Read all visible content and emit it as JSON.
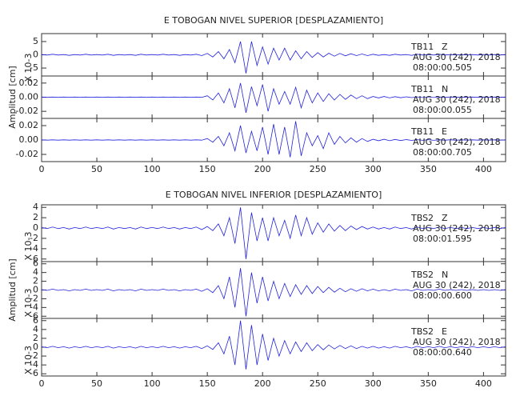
{
  "chart_data": [
    {
      "type": "line",
      "title": "E TOBOGAN NIVEL SUPERIOR [DESPLAZAMIENTO]",
      "ylabel": "Amplitud [cm]",
      "xlim": [
        0,
        420
      ],
      "xticks": [
        0,
        50,
        100,
        150,
        200,
        250,
        300,
        350,
        400
      ],
      "x": [
        0,
        5,
        10,
        15,
        20,
        25,
        30,
        35,
        40,
        45,
        50,
        55,
        60,
        65,
        70,
        75,
        80,
        85,
        90,
        95,
        100,
        105,
        110,
        115,
        120,
        125,
        130,
        135,
        140,
        145,
        150,
        155,
        160,
        165,
        170,
        175,
        180,
        185,
        190,
        195,
        200,
        205,
        210,
        215,
        220,
        225,
        230,
        235,
        240,
        245,
        250,
        255,
        260,
        265,
        270,
        275,
        280,
        285,
        290,
        295,
        300,
        305,
        310,
        315,
        320,
        325,
        330,
        335,
        340,
        345,
        350,
        355,
        360,
        365,
        370,
        375,
        380,
        385,
        390,
        395,
        400,
        405,
        410,
        415,
        420
      ],
      "panels": [
        {
          "station": "TB11",
          "component": "Z",
          "date": "AUG 30 (242), 2018",
          "time": "08:00:00.505",
          "scale_label": "X 10-3",
          "color": "#2222dd",
          "ylim": [
            -8,
            8
          ],
          "yticks": [
            -5,
            0,
            5
          ],
          "values": [
            0.1,
            -0.1,
            0.2,
            -0.1,
            0.1,
            -0.2,
            0.1,
            -0.1,
            0.2,
            -0.1,
            0.1,
            -0.1,
            0.2,
            -0.2,
            0.1,
            -0.1,
            0.1,
            -0.2,
            0.2,
            -0.1,
            0.1,
            -0.1,
            0.2,
            -0.1,
            0.1,
            -0.2,
            0.1,
            -0.1,
            0.2,
            -0.3,
            0.5,
            -0.8,
            1.2,
            -1.5,
            2,
            -3,
            5,
            -7,
            5,
            -4,
            3,
            -3.5,
            2.5,
            -2,
            2.5,
            -2,
            1.5,
            -1.5,
            1.2,
            -1,
            0.8,
            -0.8,
            0.6,
            -0.5,
            0.5,
            -0.4,
            0.4,
            -0.3,
            0.3,
            -0.3,
            0.2,
            -0.2,
            0.1,
            -0.2,
            0.2,
            -0.1,
            0.1,
            -0.2,
            0.2,
            -0.1,
            0.1,
            -0.1,
            0.2,
            -0.1,
            0.1,
            -0.1,
            0.1,
            -0.1,
            0.1,
            -0.1,
            0.1,
            -0.1,
            0.1,
            -0.1,
            0.1
          ]
        },
        {
          "station": "TB11",
          "component": "N",
          "date": "AUG 30 (242), 2018",
          "time": "08:00:00.055",
          "color": "#2222dd",
          "ylim": [
            -0.03,
            0.03
          ],
          "yticks": [
            -0.02,
            {
              "value": 0,
              "label": "0.00"
            },
            0.02
          ],
          "values": [
            0.0002,
            -0.0002,
            0.0002,
            -0.0002,
            0.0002,
            -0.0002,
            0.0002,
            -0.0002,
            0.0002,
            -0.0002,
            0.0002,
            -0.0002,
            0.0002,
            -0.0002,
            0.0002,
            -0.0002,
            0.0002,
            -0.0002,
            0.0002,
            -0.0002,
            0.0002,
            -0.0002,
            0.0002,
            -0.0002,
            0.0002,
            -0.0002,
            0.0002,
            -0.0002,
            0.0002,
            -0.0002,
            0.002,
            -0.004,
            0.006,
            -0.008,
            0.012,
            -0.015,
            0.02,
            -0.022,
            0.015,
            -0.012,
            0.018,
            -0.02,
            0.012,
            -0.01,
            0.008,
            -0.01,
            0.014,
            -0.015,
            0.01,
            -0.008,
            0.006,
            -0.006,
            0.005,
            -0.004,
            0.004,
            -0.003,
            0.003,
            -0.002,
            0.002,
            -0.002,
            0.001,
            -0.001,
            0.001,
            -0.001,
            0.0008,
            -0.0008,
            0.0006,
            -0.0006,
            0.0005,
            -0.0005,
            0.0004,
            -0.0004,
            0.0003,
            -0.0003,
            0.0003,
            -0.0003,
            0.0002,
            -0.0002,
            0.0002,
            -0.0002,
            0.0002,
            -0.0002,
            0.0002,
            -0.0002,
            0.0002
          ]
        },
        {
          "station": "TB11",
          "component": "E",
          "date": "AUG 30 (242), 2018",
          "time": "08:00:00.705",
          "color": "#2222dd",
          "ylim": [
            -0.03,
            0.03
          ],
          "yticks": [
            -0.02,
            {
              "value": 0,
              "label": "0.00"
            },
            0.02
          ],
          "values": [
            0.0002,
            -0.0002,
            0.0002,
            -0.0002,
            0.0002,
            -0.0002,
            0.0002,
            -0.0002,
            0.0002,
            -0.0002,
            0.0002,
            -0.0002,
            0.0002,
            -0.0002,
            0.0002,
            -0.0002,
            0.0002,
            -0.0002,
            0.0002,
            -0.0002,
            0.0002,
            -0.0002,
            0.0002,
            -0.0002,
            0.0002,
            -0.0002,
            0.0002,
            -0.0002,
            0.0002,
            -0.0002,
            0.002,
            -0.003,
            0.005,
            -0.008,
            0.01,
            -0.015,
            0.02,
            -0.018,
            0.012,
            -0.015,
            0.018,
            -0.02,
            0.022,
            -0.02,
            0.018,
            -0.024,
            0.026,
            -0.022,
            0.01,
            -0.008,
            0.006,
            -0.012,
            0.01,
            -0.006,
            0.005,
            -0.004,
            0.003,
            -0.003,
            0.002,
            -0.002,
            0.001,
            -0.001,
            0.001,
            -0.001,
            0.0008,
            -0.0008,
            0.0006,
            -0.0006,
            0.0005,
            -0.0005,
            0.0004,
            -0.0004,
            0.0003,
            -0.0003,
            0.0003,
            -0.0003,
            0.0002,
            -0.0002,
            0.0002,
            -0.0002,
            0.0002,
            -0.0002,
            0.0002,
            -0.0002,
            0.0002
          ]
        }
      ]
    },
    {
      "type": "line",
      "title": "E TOBOGAN NIVEL INFERIOR [DESPLAZAMIENTO]",
      "ylabel": "Amplitud [cm]",
      "xlim": [
        0,
        420
      ],
      "xticks": [
        0,
        50,
        100,
        150,
        200,
        250,
        300,
        350,
        400
      ],
      "x": [
        0,
        5,
        10,
        15,
        20,
        25,
        30,
        35,
        40,
        45,
        50,
        55,
        60,
        65,
        70,
        75,
        80,
        85,
        90,
        95,
        100,
        105,
        110,
        115,
        120,
        125,
        130,
        135,
        140,
        145,
        150,
        155,
        160,
        165,
        170,
        175,
        180,
        185,
        190,
        195,
        200,
        205,
        210,
        215,
        220,
        225,
        230,
        235,
        240,
        245,
        250,
        255,
        260,
        265,
        270,
        275,
        280,
        285,
        290,
        295,
        300,
        305,
        310,
        315,
        320,
        325,
        330,
        335,
        340,
        345,
        350,
        355,
        360,
        365,
        370,
        375,
        380,
        385,
        390,
        395,
        400,
        405,
        410,
        415,
        420
      ],
      "panels": [
        {
          "station": "TBS2",
          "component": "Z",
          "date": "AUG 30 (242), 2018",
          "time": "08:00:01.595",
          "scale_label": "X 10-3",
          "color": "#2222dd",
          "ylim": [
            -6.5,
            4.5
          ],
          "yticks": [
            -6,
            -4,
            -2,
            0,
            2,
            4
          ],
          "values": [
            0.1,
            -0.1,
            0.2,
            -0.1,
            0.1,
            -0.2,
            0.1,
            -0.1,
            0.2,
            -0.1,
            0.1,
            -0.1,
            0.2,
            -0.2,
            0.1,
            -0.1,
            0.1,
            -0.2,
            0.2,
            -0.1,
            0.1,
            -0.1,
            0.2,
            -0.1,
            0.1,
            -0.2,
            0.1,
            -0.1,
            0.2,
            -0.3,
            0.3,
            -0.5,
            0.8,
            -1.5,
            2,
            -3,
            4,
            -6,
            3,
            -2.5,
            2,
            -2.5,
            2,
            -1.5,
            1.5,
            -2,
            2.5,
            -1.5,
            2,
            -1.2,
            1,
            -0.8,
            0.8,
            -0.6,
            0.5,
            -0.5,
            0.4,
            -0.3,
            0.3,
            -0.2,
            0.2,
            -0.2,
            0.1,
            -0.2,
            0.2,
            -0.1,
            0.1,
            -0.2,
            0.2,
            -0.1,
            0.1,
            -0.1,
            0.2,
            -0.1,
            0.1,
            -0.1,
            0.1,
            -0.1,
            0.1,
            -0.1,
            0.1,
            -0.1,
            0.1,
            -0.1,
            0.1
          ]
        },
        {
          "station": "TBS2",
          "component": "N",
          "date": "AUG 30 (242), 2018",
          "time": "08:00:00.600",
          "scale_label": "X 10-3",
          "color": "#2222dd",
          "ylim": [
            -6.5,
            6.5
          ],
          "yticks": [
            -6,
            -4,
            -2,
            0,
            2,
            4,
            6
          ],
          "values": [
            0.1,
            -0.1,
            0.2,
            -0.1,
            0.1,
            -0.2,
            0.1,
            -0.1,
            0.2,
            -0.1,
            0.1,
            -0.1,
            0.2,
            -0.2,
            0.1,
            -0.1,
            0.1,
            -0.2,
            0.2,
            -0.1,
            0.1,
            -0.1,
            0.2,
            -0.1,
            0.1,
            -0.2,
            0.1,
            -0.1,
            0.2,
            -0.3,
            0.3,
            -0.6,
            1,
            -2,
            3,
            -4,
            5,
            -6,
            4,
            -3,
            3,
            -2.5,
            2,
            -2,
            1.5,
            -1.5,
            1.2,
            -1,
            1,
            -0.8,
            0.8,
            -0.6,
            0.6,
            -0.5,
            0.4,
            -0.4,
            0.3,
            -0.3,
            0.3,
            -0.2,
            0.2,
            -0.2,
            0.1,
            -0.2,
            0.2,
            -0.1,
            0.1,
            -0.2,
            0.2,
            -0.1,
            0.1,
            -0.1,
            0.2,
            -0.1,
            0.1,
            -0.1,
            0.1,
            -0.1,
            0.1,
            -0.1,
            0.1,
            -0.1,
            0.1,
            -0.1,
            0.1
          ]
        },
        {
          "station": "TBS2",
          "component": "E",
          "date": "AUG 30 (242), 2018",
          "time": "08:00:00.640",
          "scale_label": "X 10-3",
          "color": "#2222dd",
          "ylim": [
            -6.5,
            6.5
          ],
          "yticks": [
            -6,
            -4,
            -2,
            0,
            2,
            4,
            6
          ],
          "values": [
            0.1,
            -0.1,
            0.2,
            -0.1,
            0.1,
            -0.2,
            0.1,
            -0.1,
            0.2,
            -0.1,
            0.1,
            -0.1,
            0.2,
            -0.2,
            0.1,
            -0.1,
            0.1,
            -0.2,
            0.2,
            -0.1,
            0.1,
            -0.1,
            0.2,
            -0.1,
            0.1,
            -0.2,
            0.1,
            -0.1,
            0.2,
            -0.3,
            0.3,
            -0.5,
            1,
            -1.5,
            2.5,
            -4,
            6,
            -5,
            5,
            -4,
            3,
            -3,
            2,
            -2,
            1.5,
            -1.5,
            1.2,
            -1,
            1,
            -0.8,
            0.6,
            -0.6,
            0.5,
            -0.4,
            0.4,
            -0.3,
            0.3,
            -0.3,
            0.2,
            -0.2,
            0.2,
            -0.2,
            0.1,
            -0.2,
            0.2,
            -0.1,
            0.1,
            -0.2,
            0.2,
            -0.1,
            0.1,
            -0.1,
            0.2,
            -0.1,
            0.1,
            -0.1,
            0.1,
            -0.1,
            0.1,
            -0.1,
            0.1,
            -0.1,
            0.1,
            -0.1,
            0.1
          ]
        }
      ]
    }
  ]
}
